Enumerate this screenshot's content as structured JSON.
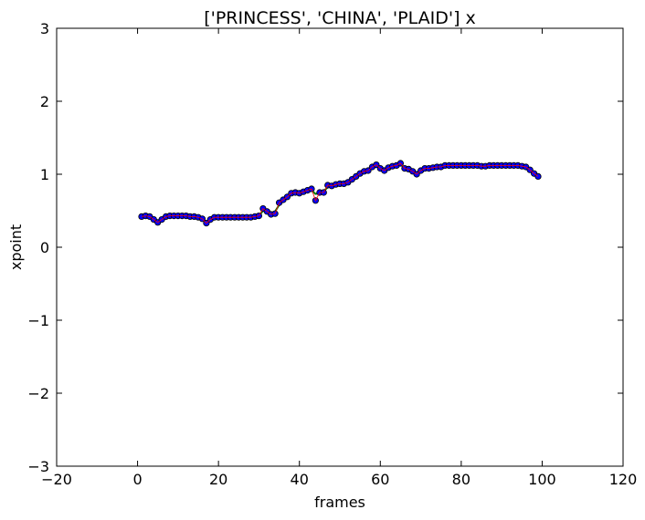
{
  "chart_data": {
    "type": "scatter",
    "title": "['PRINCESS', 'CHINA', 'PLAID'] x",
    "xlabel": "frames",
    "ylabel": "xpoint",
    "xlim": [
      -20,
      120
    ],
    "ylim": [
      -3,
      3
    ],
    "xticks": [
      -20,
      0,
      20,
      40,
      60,
      80,
      100,
      120
    ],
    "yticks": [
      -3,
      -2,
      -1,
      0,
      1,
      2,
      3
    ],
    "xtick_labels": [
      "−20",
      "0",
      "20",
      "40",
      "60",
      "80",
      "100",
      "120"
    ],
    "ytick_labels": [
      "−3",
      "−2",
      "−1",
      "0",
      "1",
      "2",
      "3"
    ],
    "grid": false,
    "legend": null,
    "colors": {
      "points": "#0000ff",
      "point_edge": "#000000",
      "fit_line": "#008000",
      "inner_line": "#ff0000"
    },
    "x": [
      1,
      2,
      3,
      4,
      5,
      6,
      7,
      8,
      9,
      10,
      11,
      12,
      13,
      14,
      15,
      16,
      17,
      18,
      19,
      20,
      21,
      22,
      23,
      24,
      25,
      26,
      27,
      28,
      29,
      30,
      31,
      32,
      33,
      34,
      35,
      36,
      37,
      38,
      39,
      40,
      41,
      42,
      43,
      44,
      45,
      46,
      47,
      48,
      49,
      50,
      51,
      52,
      53,
      54,
      55,
      56,
      57,
      58,
      59,
      60,
      61,
      62,
      63,
      64,
      65,
      66,
      67,
      68,
      69,
      70,
      71,
      72,
      73,
      74,
      75,
      76,
      77,
      78,
      79,
      80,
      81,
      82,
      83,
      84,
      85,
      86,
      87,
      88,
      89,
      90,
      91,
      92,
      93,
      94,
      95,
      96,
      97,
      98,
      99
    ],
    "y": [
      0.42,
      0.43,
      0.42,
      0.38,
      0.34,
      0.38,
      0.42,
      0.43,
      0.43,
      0.43,
      0.43,
      0.43,
      0.42,
      0.42,
      0.41,
      0.39,
      0.33,
      0.38,
      0.41,
      0.41,
      0.41,
      0.41,
      0.41,
      0.41,
      0.41,
      0.41,
      0.41,
      0.41,
      0.42,
      0.43,
      0.53,
      0.49,
      0.45,
      0.46,
      0.61,
      0.65,
      0.69,
      0.74,
      0.75,
      0.74,
      0.76,
      0.78,
      0.8,
      0.64,
      0.75,
      0.75,
      0.85,
      0.84,
      0.86,
      0.87,
      0.87,
      0.89,
      0.93,
      0.97,
      1.01,
      1.04,
      1.05,
      1.1,
      1.13,
      1.08,
      1.05,
      1.09,
      1.11,
      1.12,
      1.15,
      1.08,
      1.07,
      1.04,
      1.0,
      1.05,
      1.08,
      1.08,
      1.09,
      1.1,
      1.1,
      1.12,
      1.12,
      1.12,
      1.12,
      1.12,
      1.12,
      1.12,
      1.12,
      1.12,
      1.11,
      1.11,
      1.12,
      1.12,
      1.12,
      1.12,
      1.12,
      1.12,
      1.12,
      1.12,
      1.11,
      1.1,
      1.06,
      1.01,
      0.97
    ],
    "fit": [
      0.42,
      0.42,
      0.42,
      0.39,
      0.35,
      0.38,
      0.41,
      0.42,
      0.42,
      0.43,
      0.43,
      0.43,
      0.42,
      0.42,
      0.41,
      0.39,
      0.35,
      0.38,
      0.4,
      0.41,
      0.41,
      0.41,
      0.41,
      0.41,
      0.41,
      0.41,
      0.41,
      0.41,
      0.42,
      0.43,
      0.5,
      0.48,
      0.45,
      0.49,
      0.58,
      0.64,
      0.69,
      0.73,
      0.74,
      0.74,
      0.75,
      0.77,
      0.78,
      0.73,
      0.74,
      0.77,
      0.82,
      0.84,
      0.86,
      0.87,
      0.88,
      0.9,
      0.93,
      0.97,
      1.01,
      1.04,
      1.06,
      1.09,
      1.11,
      1.09,
      1.07,
      1.09,
      1.11,
      1.12,
      1.13,
      1.09,
      1.07,
      1.04,
      1.02,
      1.05,
      1.07,
      1.08,
      1.09,
      1.1,
      1.1,
      1.11,
      1.12,
      1.12,
      1.12,
      1.12,
      1.12,
      1.12,
      1.12,
      1.12,
      1.11,
      1.11,
      1.12,
      1.12,
      1.12,
      1.12,
      1.12,
      1.12,
      1.12,
      1.12,
      1.11,
      1.09,
      1.06,
      1.01,
      0.97
    ]
  }
}
